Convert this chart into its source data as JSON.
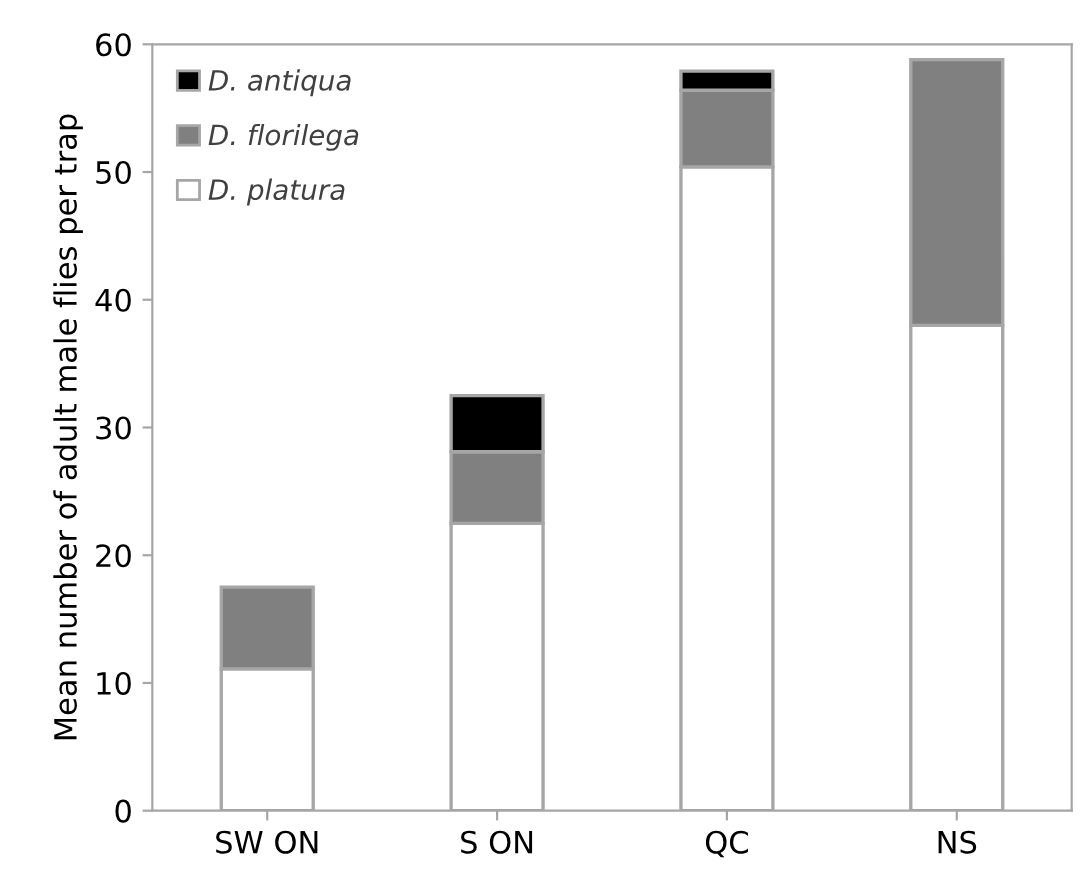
{
  "chart_data": {
    "type": "bar",
    "stacked": true,
    "ylabel": "Mean number of adult male flies per trap",
    "categories": [
      "SW ON",
      "S ON",
      "QC",
      "NS"
    ],
    "series": [
      {
        "name": "D. platura",
        "color": "#ffffff",
        "values": [
          11.1,
          22.5,
          50.4,
          38.0
        ]
      },
      {
        "name": "D. florilega",
        "color": "#808080",
        "values": [
          6.4,
          5.6,
          6.0,
          20.8
        ]
      },
      {
        "name": "D. antiqua",
        "color": "#000000",
        "values": [
          null,
          4.4,
          1.5,
          null
        ]
      }
    ],
    "ylim": [
      0,
      60
    ],
    "yticks": [
      0,
      10,
      20,
      30,
      40,
      50,
      60
    ],
    "grid": false,
    "legend": "top left"
  }
}
